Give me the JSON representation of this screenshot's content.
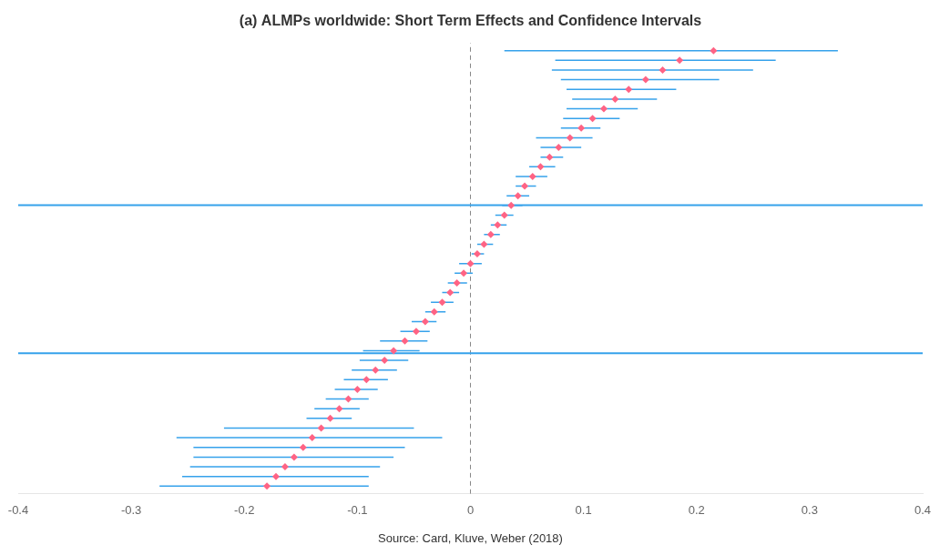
{
  "chart_data": {
    "type": "forest",
    "title": "(a) ALMPs worldwide: Short Term Effects and Confidence Intervals",
    "annotation": "Source: Card, Kluve, Weber (2018)",
    "values": [
      0.215,
      0.185,
      0.17,
      0.155,
      0.14,
      0.128,
      0.118,
      0.108,
      0.098,
      0.088,
      0.078,
      0.07,
      0.062,
      0.055,
      0.048,
      0.042,
      0.036,
      0.03,
      0.024,
      0.018,
      0.012,
      0.006,
      0,
      -0.006,
      -0.012,
      -0.018,
      -0.025,
      -0.032,
      -0.04,
      -0.048,
      -0.058,
      -0.068,
      -0.076,
      -0.084,
      -0.092,
      -0.1,
      -0.108,
      -0.116,
      -0.124,
      -0.132,
      -0.14,
      -0.148,
      -0.156,
      -0.164,
      -0.172,
      -0.18
    ],
    "ci_lower": [
      0.03,
      0.075,
      0.072,
      0.08,
      0.085,
      0.09,
      0.085,
      0.082,
      0.08,
      0.058,
      0.062,
      0.062,
      0.052,
      0.04,
      0.04,
      0.032,
      0.028,
      0.022,
      0.018,
      0.012,
      0.006,
      0.001,
      -0.01,
      -0.014,
      -0.02,
      -0.025,
      -0.035,
      -0.04,
      -0.052,
      -0.062,
      -0.08,
      -0.095,
      -0.098,
      -0.105,
      -0.112,
      -0.12,
      -0.128,
      -0.138,
      -0.145,
      -0.218,
      -0.26,
      -0.245,
      -0.245,
      -0.248,
      -0.255,
      -0.275
    ],
    "ci_upper": [
      0.325,
      0.27,
      0.25,
      0.22,
      0.182,
      0.165,
      0.148,
      0.132,
      0.115,
      0.108,
      0.098,
      0.082,
      0.075,
      0.068,
      0.058,
      0.052,
      0.046,
      0.038,
      0.032,
      0.026,
      0.02,
      0.012,
      0.01,
      0.002,
      -0.003,
      -0.01,
      -0.015,
      -0.022,
      -0.03,
      -0.036,
      -0.038,
      -0.045,
      -0.055,
      -0.065,
      -0.073,
      -0.082,
      -0.09,
      -0.098,
      -0.105,
      -0.05,
      -0.025,
      -0.058,
      -0.068,
      -0.08,
      -0.09,
      -0.09
    ],
    "xlim": [
      -0.4,
      0.4
    ],
    "xticks": [
      -0.4,
      -0.3,
      -0.2,
      -0.1,
      0,
      0.1,
      0.2,
      0.3,
      0.4
    ],
    "vline": 0,
    "separators": [
      0.695,
      0.355
    ],
    "grid": false,
    "tick_labels": "x"
  }
}
